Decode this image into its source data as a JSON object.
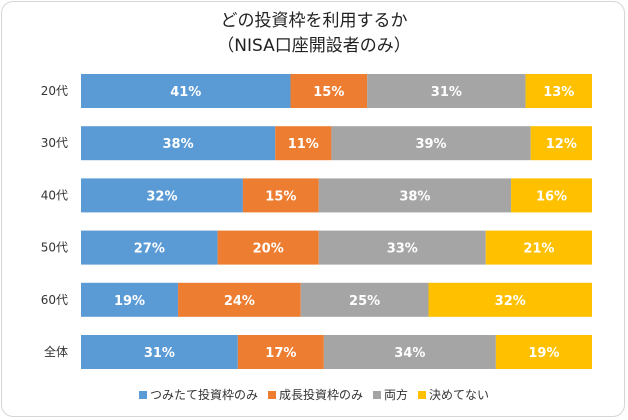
{
  "chart_data": {
    "type": "bar",
    "orientation": "horizontal",
    "stacked": true,
    "title": "どの投資枠を利用するか",
    "subtitle": "（NISA口座開設者のみ）",
    "categories": [
      "20代",
      "30代",
      "40代",
      "50代",
      "60代",
      "全体"
    ],
    "series": [
      {
        "name": "つみたて投資枠のみ",
        "color": "#5b9bd5",
        "values": [
          41,
          38,
          32,
          27,
          19,
          31
        ]
      },
      {
        "name": "成長投資枠のみ",
        "color": "#ed7d31",
        "values": [
          15,
          11,
          15,
          20,
          24,
          17
        ]
      },
      {
        "name": "両方",
        "color": "#a5a5a5",
        "values": [
          31,
          39,
          38,
          33,
          25,
          34
        ]
      },
      {
        "name": "決めてない",
        "color": "#ffc000",
        "values": [
          13,
          12,
          16,
          21,
          32,
          19
        ]
      }
    ],
    "value_suffix": "%",
    "legend_position": "bottom"
  }
}
